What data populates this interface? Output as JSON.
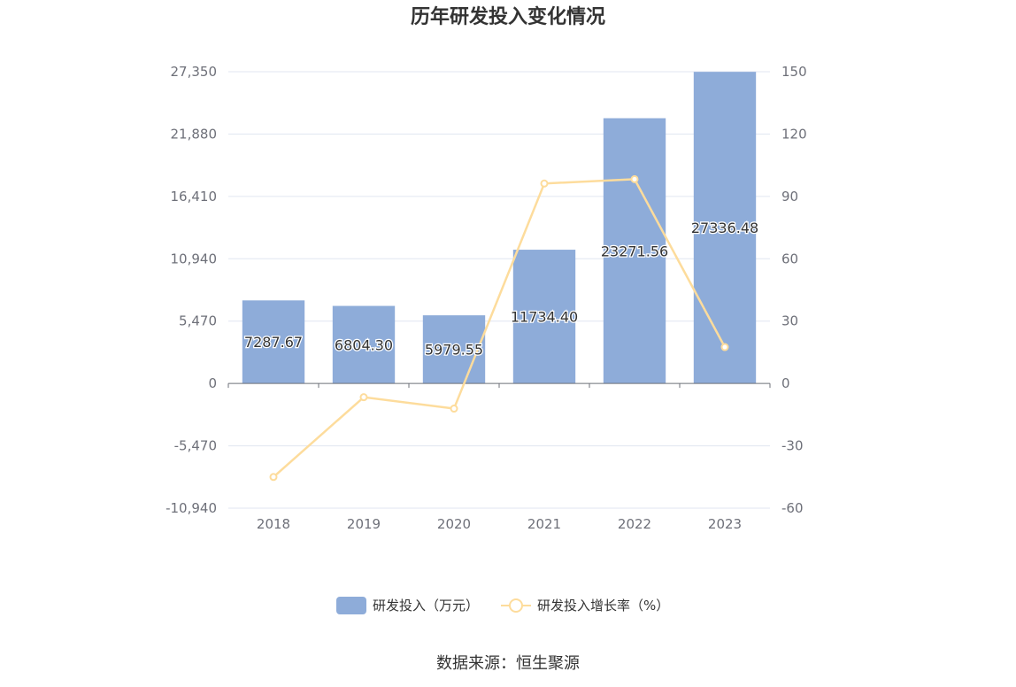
{
  "title": "历年研发投入变化情况",
  "source": "数据来源：恒生聚源",
  "colors": {
    "bar": "#8eacd9",
    "line": "#fddc9c",
    "grid": "#e0e6f1",
    "axis": "#6e7079"
  },
  "chart_data": {
    "type": "bar",
    "title": "历年研发投入变化情况",
    "categories": [
      "2018",
      "2019",
      "2020",
      "2021",
      "2022",
      "2023"
    ],
    "series": [
      {
        "name": "研发投入（万元）",
        "type": "bar",
        "axis": "left",
        "values": [
          7287.67,
          6804.3,
          5979.55,
          11734.4,
          23271.56,
          27336.48
        ],
        "labels": [
          "7287.67",
          "6804.30",
          "5979.55",
          "11734.40",
          "23271.56",
          "27336.48"
        ]
      },
      {
        "name": "研发投入增长率（%）",
        "type": "line",
        "axis": "right",
        "values": [
          -45.0,
          -6.6,
          -12.1,
          96.2,
          98.3,
          17.5
        ]
      }
    ],
    "left_axis": {
      "ticks": [
        27350,
        21880,
        16410,
        10940,
        5470,
        0,
        -5470,
        -10940
      ],
      "tick_labels": [
        "27,350",
        "21,880",
        "16,410",
        "10,940",
        "5,470",
        "0",
        "-5,470",
        "-10,940"
      ],
      "ylim": [
        -10940,
        27350
      ]
    },
    "right_axis": {
      "ticks": [
        150,
        120,
        90,
        60,
        30,
        0,
        -30,
        -60
      ],
      "tick_labels": [
        "150",
        "120",
        "90",
        "60",
        "30",
        "0",
        "-30",
        "-60"
      ],
      "ylim": [
        -60,
        150
      ]
    },
    "legend": [
      "研发投入（万元）",
      "研发投入增长率（%）"
    ],
    "legend_position": "bottom",
    "grid": true
  }
}
